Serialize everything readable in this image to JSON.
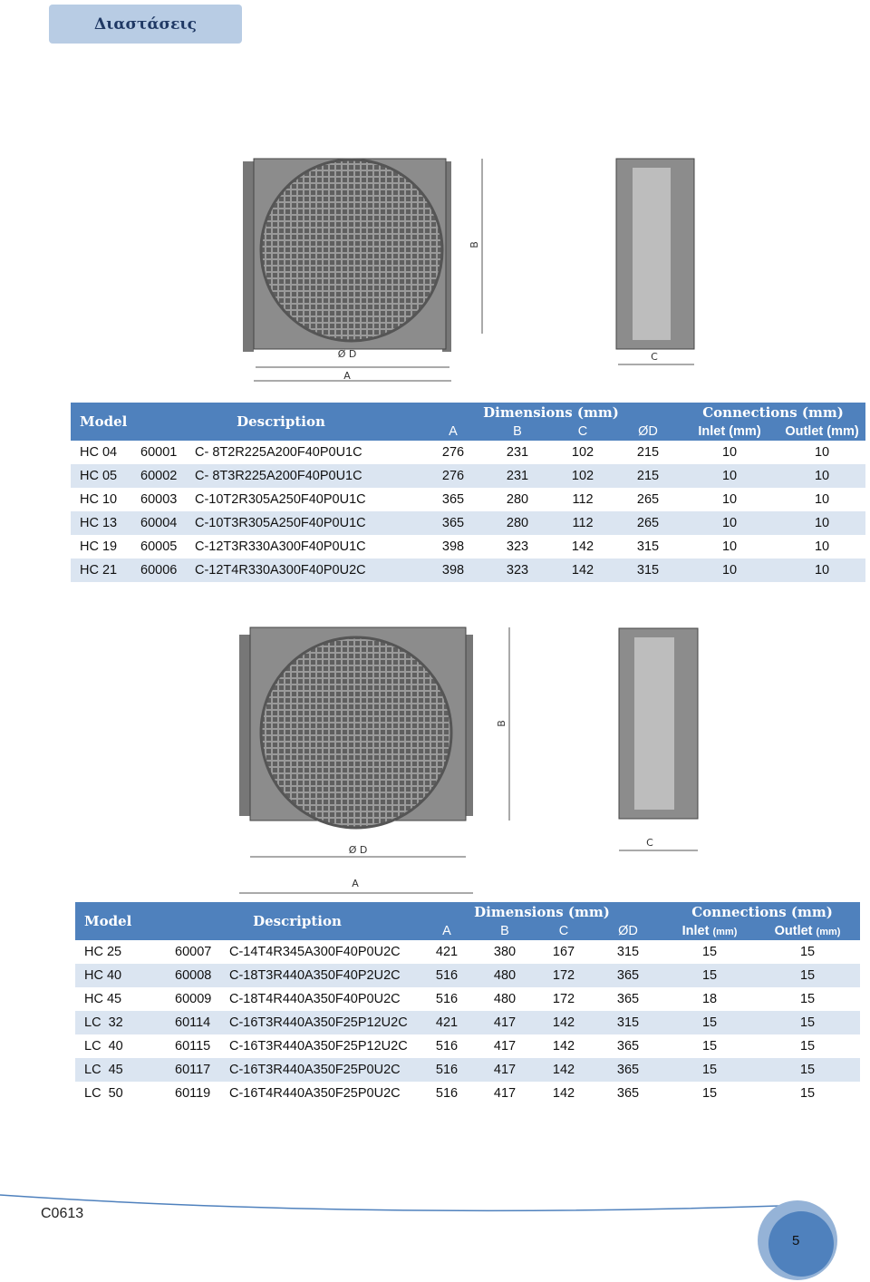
{
  "header": {
    "title": "Διαστάσεις"
  },
  "figure1": {
    "labels": {
      "b": "B",
      "d": "Ø D",
      "a": "A",
      "c": "C"
    }
  },
  "table1": {
    "header": {
      "model": "Model",
      "description": "Description",
      "dimensions": "Dimensions (mm)",
      "connections": "Connections (mm)",
      "cols": [
        "A",
        "B",
        "C",
        "ØD"
      ],
      "inlet": "Inlet (mm)",
      "outlet": "Outlet (mm)"
    },
    "rows": [
      [
        "HC 04",
        "60001",
        "C- 8T2R225A200F40P0U1C",
        276,
        231,
        102,
        215,
        10,
        10
      ],
      [
        "HC 05",
        "60002",
        "C- 8T3R225A200F40P0U1C",
        276,
        231,
        102,
        215,
        10,
        10
      ],
      [
        "HC 10",
        "60003",
        "C-10T2R305A250F40P0U1C",
        365,
        280,
        112,
        265,
        10,
        10
      ],
      [
        "HC 13",
        "60004",
        "C-10T3R305A250F40P0U1C",
        365,
        280,
        112,
        265,
        10,
        10
      ],
      [
        "HC 19",
        "60005",
        "C-12T3R330A300F40P0U1C",
        398,
        323,
        142,
        315,
        10,
        10
      ],
      [
        "HC 21",
        "60006",
        "C-12T4R330A300F40P0U2C",
        398,
        323,
        142,
        315,
        10,
        10
      ]
    ]
  },
  "figure2": {
    "labels": {
      "b": "B",
      "d": "Ø D",
      "a": "A",
      "c": "C"
    }
  },
  "table2": {
    "header": {
      "model": "Model",
      "description": "Description",
      "dimensions": "Dimensions (mm)",
      "connections": "Connections (mm)",
      "cols": [
        "A",
        "B",
        "C",
        "ØD"
      ],
      "inlet": "Inlet",
      "outlet": "Outlet",
      "unit": "(mm)"
    },
    "rows": [
      [
        "HC 25",
        "60007",
        "C-14T4R345A300F40P0U2C",
        421,
        380,
        167,
        315,
        15,
        15
      ],
      [
        "HC 40",
        "60008",
        "C-18T3R440A350F40P2U2C",
        516,
        480,
        172,
        365,
        15,
        15
      ],
      [
        "HC 45",
        "60009",
        "C-18T4R440A350F40P0U2C",
        516,
        480,
        172,
        365,
        18,
        15
      ],
      [
        "LC  32",
        "60114",
        "C-16T3R440A350F25P12U2C",
        421,
        417,
        142,
        315,
        15,
        15
      ],
      [
        "LC  40",
        "60115",
        "C-16T3R440A350F25P12U2C",
        516,
        417,
        142,
        365,
        15,
        15
      ],
      [
        "LC  45",
        "60117",
        "C-16T3R440A350F25P0U2C",
        516,
        417,
        142,
        365,
        15,
        15
      ],
      [
        "LC  50",
        "60119",
        "C-16T4R440A350F25P0U2C",
        516,
        417,
        142,
        365,
        15,
        15
      ]
    ]
  },
  "footer": {
    "code": "C0613",
    "page": 5
  }
}
